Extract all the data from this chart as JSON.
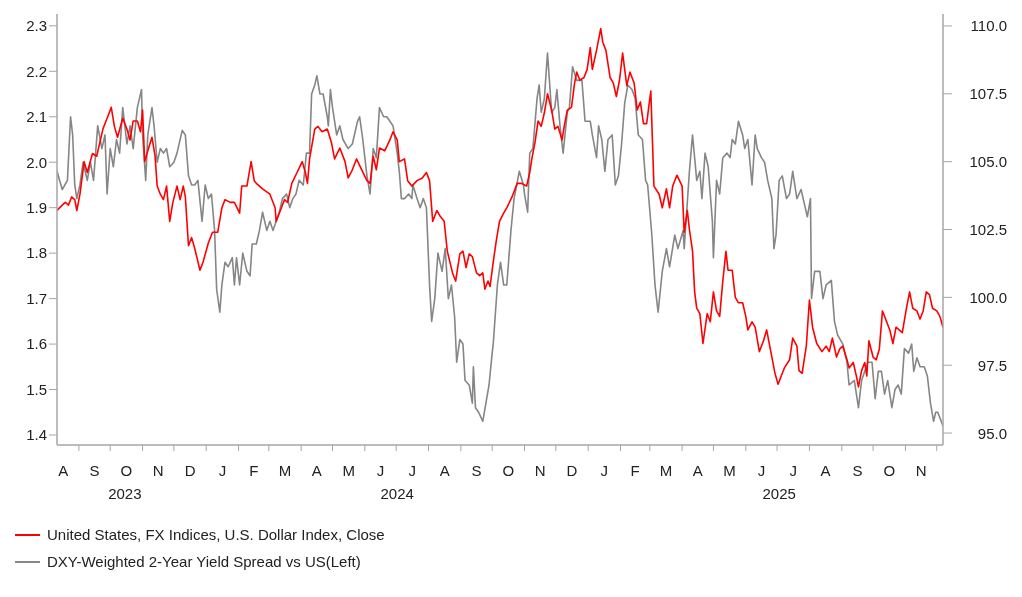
{
  "chart_data": {
    "type": "line",
    "legend": "bottom left",
    "marker": "none",
    "xlim": [
      "2023-08-11",
      "2025-12-07"
    ],
    "xticks": [
      {
        "value": "2023-09-01",
        "label": null
      },
      {
        "value": "2023-10-01",
        "label": null
      },
      {
        "value": "2023-11-01",
        "label": null
      },
      {
        "value": "2023-12-01",
        "label": null
      },
      {
        "value": "2024-01-01",
        "label": null
      },
      {
        "value": "2024-02-01",
        "label": null
      },
      {
        "value": "2024-03-01",
        "label": null
      },
      {
        "value": "2024-04-01",
        "label": null
      },
      {
        "value": "2024-05-01",
        "label": null
      },
      {
        "value": "2024-06-01",
        "label": null
      },
      {
        "value": "2024-07-01",
        "label": null
      },
      {
        "value": "2024-08-01",
        "label": null
      },
      {
        "value": "2024-09-01",
        "label": null
      },
      {
        "value": "2024-10-01",
        "label": null
      },
      {
        "value": "2024-11-01",
        "label": null
      },
      {
        "value": "2024-12-01",
        "label": null
      },
      {
        "value": "2025-01-01",
        "label": null
      },
      {
        "value": "2025-02-01",
        "label": null
      },
      {
        "value": "2025-03-01",
        "label": null
      },
      {
        "value": "2025-04-01",
        "label": null
      },
      {
        "value": "2025-05-01",
        "label": null
      },
      {
        "value": "2025-06-01",
        "label": null
      },
      {
        "value": "2025-07-01",
        "label": null
      },
      {
        "value": "2025-08-01",
        "label": null
      },
      {
        "value": "2025-09-01",
        "label": null
      },
      {
        "value": "2025-10-01",
        "label": null
      },
      {
        "value": "2025-11-01",
        "label": null
      },
      {
        "value": "2025-12-01",
        "label": null
      },
      {
        "value": "2023-10-15",
        "label": "2023"
      },
      {
        "value": "2024-07-02",
        "label": "2024"
      },
      {
        "value": "2025-07-03",
        "label": "2025"
      }
    ],
    "annotations": [
      "A",
      "S",
      "O",
      "N",
      "D",
      "J",
      "F",
      "M",
      "A",
      "M",
      "J",
      "J",
      "A",
      "S",
      "O",
      "N",
      "D",
      "J",
      "F",
      "M",
      "A",
      "M",
      "J",
      "J",
      "A",
      "S",
      "O",
      "N"
    ],
    "ylim": [
      1.378,
      2.326
    ],
    "yticks": [
      1.4,
      1.5,
      1.6,
      1.7,
      1.8,
      1.9,
      {
        "value": 2,
        "label": "2.0"
      },
      2.1,
      2.2,
      2.3
    ],
    "y2lim": [
      94.56,
      110.44
    ],
    "y2ticks": [
      {
        "value": 95,
        "label": "95.0"
      },
      97.5,
      {
        "value": 100,
        "label": "100.0"
      },
      102.5,
      {
        "value": 105,
        "label": "105.0"
      },
      107.5,
      {
        "value": 110,
        "label": "110.0"
      }
    ],
    "series": [
      {
        "name": "United States, FX Indices, U.S. Dollar Index, Close",
        "color": "#ff0000",
        "axis": "y2",
        "x": [
          "2023-08-11",
          "2023-08-16",
          "2023-08-19",
          "2023-08-22",
          "2023-08-25",
          "2023-08-28",
          "2023-08-30",
          "2023-09-02",
          "2023-09-06",
          "2023-09-09",
          "2023-09-14",
          "2023-09-18",
          "2023-09-24",
          "2023-09-28",
          "2023-10-02",
          "2023-10-05",
          "2023-10-08",
          "2023-10-13",
          "2023-10-17",
          "2023-10-20",
          "2023-10-23",
          "2023-10-27",
          "2023-10-30",
          "2023-11-01",
          "2023-11-03",
          "2023-11-06",
          "2023-11-10",
          "2023-11-13",
          "2023-11-15",
          "2023-11-18",
          "2023-11-21",
          "2023-11-24",
          "2023-11-27",
          "2023-11-30",
          "2023-12-04",
          "2023-12-07",
          "2023-12-10",
          "2023-12-12",
          "2023-12-15",
          "2023-12-18",
          "2023-12-21",
          "2023-12-26",
          "2023-12-29",
          "2024-01-03",
          "2024-01-07",
          "2024-01-12",
          "2024-01-16",
          "2024-01-19",
          "2024-01-24",
          "2024-01-28",
          "2024-02-02",
          "2024-02-04",
          "2024-02-09",
          "2024-02-13",
          "2024-02-16",
          "2024-02-18",
          "2024-02-24",
          "2024-03-02",
          "2024-03-07",
          "2024-03-08",
          "2024-03-11",
          "2024-03-16",
          "2024-03-19",
          "2024-03-23",
          "2024-03-28",
          "2024-04-02",
          "2024-04-05",
          "2024-04-07",
          "2024-04-09",
          "2024-04-14",
          "2024-04-17",
          "2024-04-21",
          "2024-04-26",
          "2024-04-30",
          "2024-05-03",
          "2024-05-08",
          "2024-05-13",
          "2024-05-16",
          "2024-05-20",
          "2024-05-24",
          "2024-05-29",
          "2024-06-03",
          "2024-06-06",
          "2024-06-09",
          "2024-06-12",
          "2024-06-15",
          "2024-06-20",
          "2024-06-25",
          "2024-06-28",
          "2024-07-02",
          "2024-07-04",
          "2024-07-09",
          "2024-07-12",
          "2024-07-16",
          "2024-07-21",
          "2024-07-26",
          "2024-07-30",
          "2024-08-02",
          "2024-08-05",
          "2024-08-09",
          "2024-08-12",
          "2024-08-16",
          "2024-08-19",
          "2024-08-24",
          "2024-08-27",
          "2024-08-31",
          "2024-09-03",
          "2024-09-06",
          "2024-09-09",
          "2024-09-12",
          "2024-09-16",
          "2024-09-19",
          "2024-09-22",
          "2024-09-24",
          "2024-09-27",
          "2024-09-29",
          "2024-10-02",
          "2024-10-05",
          "2024-10-08",
          "2024-10-12",
          "2024-10-15",
          "2024-10-20",
          "2024-10-25",
          "2024-10-29",
          "2024-11-03",
          "2024-11-06",
          "2024-11-08",
          "2024-11-11",
          "2024-11-14",
          "2024-11-17",
          "2024-11-20",
          "2024-11-23",
          "2024-11-27",
          "2024-11-30",
          "2024-12-03",
          "2024-12-07",
          "2024-12-09",
          "2024-12-12",
          "2024-12-16",
          "2024-12-19",
          "2024-12-21",
          "2024-12-24",
          "2024-12-28",
          "2024-12-31",
          "2025-01-03",
          "2025-01-05",
          "2025-01-09",
          "2025-01-13",
          "2025-01-15",
          "2025-01-18",
          "2025-01-22",
          "2025-01-25",
          "2025-01-28",
          "2025-01-31",
          "2025-02-03",
          "2025-02-07",
          "2025-02-10",
          "2025-02-14",
          "2025-02-17",
          "2025-02-20",
          "2025-02-23",
          "2025-02-26",
          "2025-03-02",
          "2025-03-05",
          "2025-03-10",
          "2025-03-13",
          "2025-03-17",
          "2025-03-20",
          "2025-03-23",
          "2025-03-27",
          "2025-04-01",
          "2025-04-03",
          "2025-04-06",
          "2025-04-08",
          "2025-04-11",
          "2025-04-13",
          "2025-04-15",
          "2025-04-18",
          "2025-04-21",
          "2025-04-25",
          "2025-04-28",
          "2025-05-01",
          "2025-05-04",
          "2025-05-07",
          "2025-05-10",
          "2025-05-13",
          "2025-05-15",
          "2025-05-19",
          "2025-05-22",
          "2025-05-25",
          "2025-05-29",
          "2025-06-01",
          "2025-06-03",
          "2025-06-07",
          "2025-06-10",
          "2025-06-14",
          "2025-06-18",
          "2025-06-21",
          "2025-06-24",
          "2025-06-29",
          "2025-07-02",
          "2025-07-05",
          "2025-07-08",
          "2025-07-13",
          "2025-07-16",
          "2025-07-20",
          "2025-07-22",
          "2025-07-25",
          "2025-07-29",
          "2025-08-01",
          "2025-08-04",
          "2025-08-08",
          "2025-08-13",
          "2025-08-17",
          "2025-08-20",
          "2025-08-23",
          "2025-08-27",
          "2025-08-30",
          "2025-09-02",
          "2025-09-06",
          "2025-09-08",
          "2025-09-12",
          "2025-09-15",
          "2025-09-17",
          "2025-09-20",
          "2025-09-23",
          "2025-09-25",
          "2025-09-27",
          "2025-10-01",
          "2025-10-04",
          "2025-10-07",
          "2025-10-10",
          "2025-10-14",
          "2025-10-17",
          "2025-10-20",
          "2025-10-23",
          "2025-10-26",
          "2025-10-29",
          "2025-11-02",
          "2025-11-05",
          "2025-11-08",
          "2025-11-12",
          "2025-11-15",
          "2025-11-18",
          "2025-11-21",
          "2025-11-24",
          "2025-11-27",
          "2025-12-01",
          "2025-12-04",
          "2025-12-07"
        ],
        "values": [
          103.2,
          103.4,
          103.5,
          103.4,
          103.7,
          103.6,
          103.2,
          103.8,
          105.0,
          104.6,
          105.3,
          105.2,
          106.2,
          106.6,
          107.0,
          106.3,
          105.9,
          106.6,
          106.2,
          105.8,
          106.5,
          106.5,
          106.1,
          106.9,
          105.0,
          105.4,
          105.9,
          105.2,
          104.1,
          103.8,
          103.6,
          104.1,
          102.8,
          103.5,
          104.1,
          103.6,
          104.1,
          103.7,
          101.9,
          102.2,
          101.8,
          101.0,
          101.3,
          102.0,
          102.4,
          102.4,
          103.3,
          103.6,
          103.5,
          103.5,
          103.1,
          104.1,
          104.1,
          105.0,
          104.3,
          104.2,
          104.0,
          103.8,
          103.3,
          102.8,
          103.1,
          103.6,
          103.5,
          104.2,
          104.6,
          105.0,
          104.6,
          104.2,
          105.1,
          106.2,
          106.3,
          106.1,
          106.2,
          105.7,
          105.1,
          105.5,
          105.0,
          104.4,
          104.7,
          105.1,
          104.7,
          104.3,
          104.2,
          105.2,
          104.7,
          105.5,
          105.4,
          105.8,
          106.1,
          105.8,
          105.0,
          105.1,
          104.3,
          104.1,
          104.3,
          104.4,
          104.6,
          104.3,
          102.8,
          103.2,
          103.0,
          102.8,
          101.7,
          100.9,
          100.6,
          101.6,
          101.7,
          101.1,
          101.6,
          101.5,
          100.9,
          100.8,
          100.9,
          100.3,
          100.6,
          100.4,
          101.3,
          102.1,
          102.8,
          103.1,
          103.3,
          103.7,
          104.2,
          104.2,
          104.1,
          104.6,
          105.1,
          105.7,
          106.5,
          106.3,
          106.8,
          107.5,
          106.9,
          106.2,
          106.3,
          105.8,
          106.3,
          106.9,
          107.0,
          107.9,
          108.3,
          108.0,
          108.1,
          108.4,
          109.2,
          108.4,
          109.1,
          109.9,
          109.4,
          109.1,
          108.1,
          107.9,
          107.4,
          108.0,
          109.0,
          107.8,
          108.3,
          107.9,
          106.9,
          107.2,
          106.4,
          106.4,
          107.6,
          104.1,
          103.8,
          103.3,
          104.0,
          103.3,
          104.1,
          104.5,
          104.1,
          102.4,
          103.2,
          102.5,
          101.7,
          100.2,
          99.6,
          99.4,
          98.3,
          99.4,
          99.1,
          100.2,
          99.5,
          99.3,
          100.6,
          101.7,
          101.0,
          101.0,
          100.0,
          99.8,
          99.8,
          99.3,
          98.8,
          99.1,
          98.9,
          98.0,
          98.4,
          98.8,
          98.2,
          97.2,
          96.8,
          97.1,
          97.4,
          97.7,
          98.5,
          98.2,
          97.3,
          97.2,
          98.2,
          99.9,
          98.9,
          98.3,
          98.0,
          98.2,
          98.0,
          98.5,
          97.8,
          98.1,
          98.2,
          97.7,
          97.4,
          97.6,
          97.1,
          96.7,
          97.3,
          97.6,
          97.1,
          98.4,
          97.8,
          97.7,
          98.1,
          99.5,
          99.1,
          98.8,
          98.3,
          98.9,
          98.8,
          98.7,
          99.6,
          100.2,
          99.6,
          99.5,
          99.2,
          99.5,
          100.2,
          100.1,
          99.6,
          99.5,
          99.3,
          98.9
        ]
      },
      {
        "name": "DXY-Weighted 2-Year Yield Spread vs US(Left)",
        "color": "#868686",
        "axis": "y",
        "x": [
          "2023-08-11",
          "2023-08-16",
          "2023-08-21",
          "2023-08-24",
          "2023-08-26",
          "2023-08-28",
          "2023-08-30",
          "2023-09-02",
          "2023-09-05",
          "2023-09-09",
          "2023-09-12",
          "2023-09-15",
          "2023-09-19",
          "2023-09-23",
          "2023-09-26",
          "2023-09-28",
          "2023-10-01",
          "2023-10-04",
          "2023-10-07",
          "2023-10-10",
          "2023-10-13",
          "2023-10-17",
          "2023-10-20",
          "2023-10-23",
          "2023-10-27",
          "2023-10-31",
          "2023-11-01",
          "2023-11-04",
          "2023-11-06",
          "2023-11-10",
          "2023-11-12",
          "2023-11-15",
          "2023-11-18",
          "2023-11-21",
          "2023-11-24",
          "2023-11-27",
          "2023-12-01",
          "2023-12-04",
          "2023-12-09",
          "2023-12-12",
          "2023-12-15",
          "2023-12-18",
          "2023-12-21",
          "2023-12-24",
          "2023-12-28",
          "2023-12-31",
          "2024-01-03",
          "2024-01-06",
          "2024-01-09",
          "2024-01-11",
          "2024-01-14",
          "2024-01-16",
          "2024-01-19",
          "2024-01-22",
          "2024-01-26",
          "2024-01-28",
          "2024-01-30",
          "2024-02-02",
          "2024-02-05",
          "2024-02-09",
          "2024-02-12",
          "2024-02-14",
          "2024-02-18",
          "2024-02-21",
          "2024-02-24",
          "2024-02-28",
          "2024-03-02",
          "2024-03-05",
          "2024-03-08",
          "2024-03-11",
          "2024-03-14",
          "2024-03-18",
          "2024-03-21",
          "2024-03-24",
          "2024-03-27",
          "2024-03-30",
          "2024-04-03",
          "2024-04-06",
          "2024-04-09",
          "2024-04-11",
          "2024-04-14",
          "2024-04-16",
          "2024-04-19",
          "2024-04-22",
          "2024-04-26",
          "2024-04-27",
          "2024-04-29",
          "2024-05-01",
          "2024-05-05",
          "2024-05-08",
          "2024-05-11",
          "2024-05-16",
          "2024-05-20",
          "2024-05-25",
          "2024-05-27",
          "2024-05-30",
          "2024-06-03",
          "2024-06-06",
          "2024-06-09",
          "2024-06-12",
          "2024-06-15",
          "2024-06-19",
          "2024-06-22",
          "2024-06-25",
          "2024-06-28",
          "2024-07-02",
          "2024-07-04",
          "2024-07-06",
          "2024-07-09",
          "2024-07-13",
          "2024-07-16",
          "2024-07-17",
          "2024-07-21",
          "2024-07-24",
          "2024-07-27",
          "2024-07-30",
          "2024-08-02",
          "2024-08-04",
          "2024-08-07",
          "2024-08-10",
          "2024-08-14",
          "2024-08-17",
          "2024-08-20",
          "2024-08-23",
          "2024-08-26",
          "2024-08-28",
          "2024-08-31",
          "2024-09-03",
          "2024-09-05",
          "2024-09-09",
          "2024-09-12",
          "2024-09-13",
          "2024-09-15",
          "2024-09-18",
          "2024-09-22",
          "2024-09-25",
          "2024-09-28",
          "2024-10-01",
          "2024-10-02",
          "2024-10-06",
          "2024-10-09",
          "2024-10-12",
          "2024-10-15",
          "2024-10-17",
          "2024-10-19",
          "2024-10-22",
          "2024-10-27",
          "2024-10-31",
          "2024-11-01",
          "2024-11-04",
          "2024-11-06",
          "2024-11-09",
          "2024-11-13",
          "2024-11-15",
          "2024-11-17",
          "2024-11-20",
          "2024-11-23",
          "2024-11-27",
          "2024-11-30",
          "2024-12-02",
          "2024-12-05",
          "2024-12-08",
          "2024-12-12",
          "2024-12-14",
          "2024-12-17",
          "2024-12-21",
          "2024-12-26",
          "2024-12-29",
          "2025-01-03",
          "2025-01-05",
          "2025-01-09",
          "2025-01-11",
          "2025-01-14",
          "2025-01-17",
          "2025-01-20",
          "2025-01-24",
          "2025-01-27",
          "2025-01-30",
          "2025-02-02",
          "2025-02-05",
          "2025-02-08",
          "2025-02-12",
          "2025-02-15",
          "2025-02-18",
          "2025-02-22",
          "2025-02-25",
          "2025-02-27",
          "2025-03-03",
          "2025-03-06",
          "2025-03-09",
          "2025-03-13",
          "2025-03-17",
          "2025-03-20",
          "2025-03-25",
          "2025-03-28",
          "2025-04-02",
          "2025-04-03",
          "2025-04-08",
          "2025-04-11",
          "2025-04-15",
          "2025-04-18",
          "2025-04-20",
          "2025-04-23",
          "2025-04-26",
          "2025-04-30",
          "2025-05-01",
          "2025-05-04",
          "2025-05-07",
          "2025-05-10",
          "2025-05-14",
          "2025-05-17",
          "2025-05-19",
          "2025-05-22",
          "2025-05-25",
          "2025-05-29",
          "2025-05-31",
          "2025-06-03",
          "2025-06-07",
          "2025-06-10",
          "2025-06-12",
          "2025-06-16",
          "2025-06-19",
          "2025-06-22",
          "2025-06-26",
          "2025-06-28",
          "2025-06-30",
          "2025-07-03",
          "2025-07-06",
          "2025-07-10",
          "2025-07-13",
          "2025-07-16",
          "2025-07-20",
          "2025-07-24",
          "2025-07-27",
          "2025-07-30",
          "2025-08-02",
          "2025-08-03",
          "2025-08-06",
          "2025-08-11",
          "2025-08-14",
          "2025-08-17",
          "2025-08-22",
          "2025-08-25",
          "2025-08-28",
          "2025-09-02",
          "2025-09-06",
          "2025-09-08",
          "2025-09-13",
          "2025-09-17",
          "2025-09-20",
          "2025-09-26",
          "2025-09-30",
          "2025-10-03",
          "2025-10-06",
          "2025-10-09",
          "2025-10-12",
          "2025-10-15",
          "2025-10-19",
          "2025-10-22",
          "2025-10-25",
          "2025-10-28",
          "2025-10-31",
          "2025-11-04",
          "2025-11-07",
          "2025-11-09",
          "2025-11-12",
          "2025-11-15",
          "2025-11-19",
          "2025-11-22",
          "2025-11-25",
          "2025-11-28",
          "2025-11-30",
          "2025-12-02",
          "2025-12-07"
        ],
        "values": [
          1.98,
          1.94,
          1.96,
          2.1,
          2.06,
          1.95,
          1.92,
          1.95,
          2.0,
          1.96,
          2.0,
          1.96,
          2.08,
          2.03,
          2.06,
          1.93,
          2.03,
          1.99,
          2.05,
          2.02,
          2.12,
          2.04,
          2.08,
          2.03,
          2.12,
          2.16,
          2.06,
          1.96,
          2.06,
          2.12,
          2.08,
          2.0,
          2.03,
          2.02,
          2.03,
          1.99,
          2.0,
          2.02,
          2.07,
          2.06,
          1.97,
          1.95,
          1.95,
          1.96,
          1.87,
          1.95,
          1.92,
          1.93,
          1.85,
          1.72,
          1.67,
          1.73,
          1.78,
          1.77,
          1.79,
          1.73,
          1.79,
          1.73,
          1.8,
          1.76,
          1.75,
          1.82,
          1.82,
          1.85,
          1.89,
          1.85,
          1.87,
          1.85,
          1.87,
          1.89,
          1.92,
          1.93,
          1.9,
          1.92,
          1.93,
          1.96,
          1.95,
          2.02,
          2.02,
          2.15,
          2.17,
          2.19,
          2.15,
          2.15,
          2.1,
          2.08,
          2.16,
          2.12,
          2.06,
          2.08,
          2.05,
          2.03,
          2.04,
          2.09,
          2.1,
          2.05,
          1.97,
          1.93,
          2.03,
          2.01,
          2.12,
          2.1,
          2.1,
          2.09,
          2.08,
          2.02,
          1.98,
          1.92,
          1.92,
          1.93,
          1.92,
          1.95,
          1.92,
          1.9,
          1.92,
          1.9,
          1.73,
          1.65,
          1.7,
          1.8,
          1.76,
          1.81,
          1.7,
          1.73,
          1.66,
          1.56,
          1.61,
          1.6,
          1.52,
          1.51,
          1.47,
          1.55,
          1.46,
          1.45,
          1.43,
          1.47,
          1.51,
          1.58,
          1.6,
          1.73,
          1.78,
          1.73,
          1.73,
          1.79,
          1.85,
          1.92,
          1.98,
          1.95,
          1.93,
          1.89,
          2.02,
          2.03,
          2.14,
          2.17,
          2.11,
          2.14,
          2.24,
          2.11,
          2.12,
          2.16,
          2.08,
          2.02,
          2.11,
          2.12,
          2.21,
          2.18,
          2.18,
          2.09,
          2.09,
          2.06,
          2.01,
          2.08,
          2.05,
          1.98,
          2.05,
          2.06,
          1.95,
          1.97,
          2.04,
          2.13,
          2.17,
          2.16,
          2.14,
          2.06,
          2.05,
          1.96,
          1.95,
          1.84,
          1.73,
          1.67,
          1.76,
          1.81,
          1.77,
          1.84,
          1.81,
          1.85,
          1.81,
          1.98,
          2.06,
          1.96,
          1.98,
          1.92,
          2.02,
          1.99,
          1.87,
          1.79,
          1.96,
          1.93,
          2.01,
          2.02,
          2.01,
          2.05,
          2.04,
          2.09,
          2.06,
          2.03,
          2.05,
          1.95,
          2.06,
          2.03,
          2.01,
          2.0,
          1.96,
          1.92,
          1.81,
          1.84,
          1.96,
          1.97,
          1.92,
          1.93,
          1.98,
          1.92,
          1.94,
          1.91,
          1.88,
          1.92,
          1.7,
          1.76,
          1.76,
          1.7,
          1.73,
          1.74,
          1.65,
          1.62,
          1.6,
          1.56,
          1.51,
          1.52,
          1.46,
          1.52,
          1.56,
          1.56,
          1.48,
          1.54,
          1.54,
          1.49,
          1.52,
          1.46,
          1.5,
          1.51,
          1.49,
          1.59,
          1.58,
          1.6,
          1.54,
          1.57,
          1.55,
          1.55,
          1.53,
          1.47,
          1.43,
          1.45,
          1.45,
          1.42
        ]
      }
    ]
  }
}
